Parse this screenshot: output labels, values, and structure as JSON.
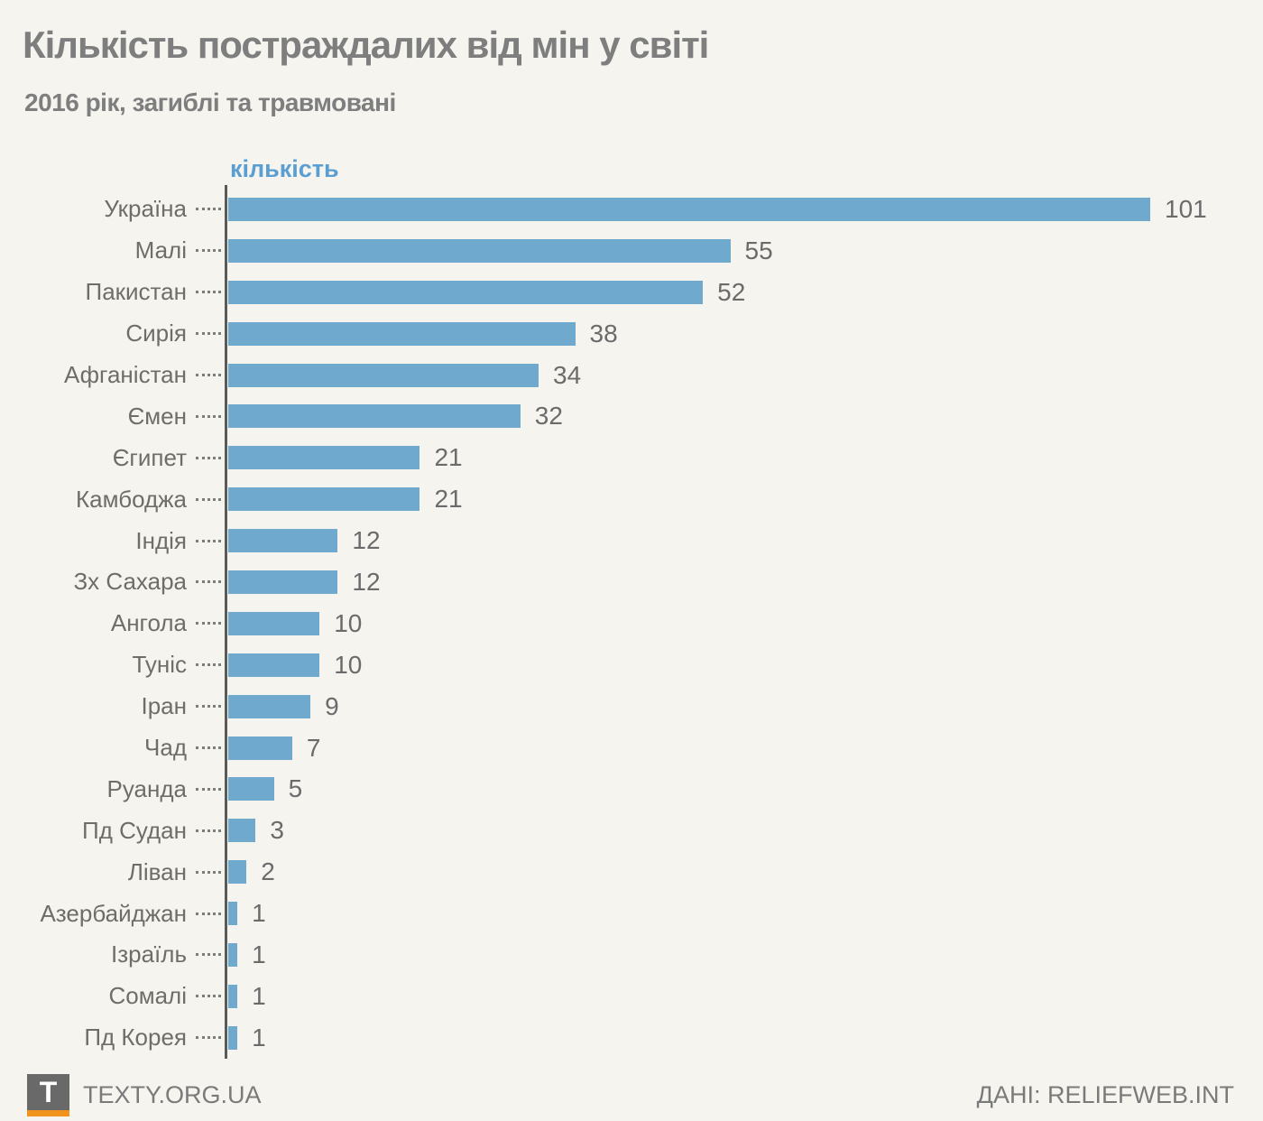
{
  "header": {
    "title": "Кількість постраждалих від мін у світі",
    "subtitle": "2016 рік, загиблі та травмовані"
  },
  "chart_data": {
    "type": "bar",
    "orientation": "horizontal",
    "axis_label": "кількість",
    "categories": [
      "Україна",
      "Малі",
      "Пакистан",
      "Сирія",
      "Афганістан",
      "Ємен",
      "Єгипет",
      "Камбоджа",
      "Індія",
      "Зх Сахара",
      "Ангола",
      "Туніс",
      "Іран",
      "Чад",
      "Руанда",
      "Пд Судан",
      "Ліван",
      "Азербайджан",
      "Ізраїль",
      "Сомалі",
      "Пд Корея"
    ],
    "values": [
      101,
      55,
      52,
      38,
      34,
      32,
      21,
      21,
      12,
      12,
      10,
      10,
      9,
      7,
      5,
      3,
      2,
      1,
      1,
      1,
      1
    ],
    "xlim": [
      0,
      101
    ],
    "bar_color": "#6fa9ce",
    "axis_label_color": "#5b9fd2",
    "grid": false,
    "legend": false,
    "value_labels": true
  },
  "footer": {
    "logo_letter": "T",
    "left_text": "TEXTY.ORG.UA",
    "right_text": "ДАНІ: RELIEFWEB.INT"
  }
}
